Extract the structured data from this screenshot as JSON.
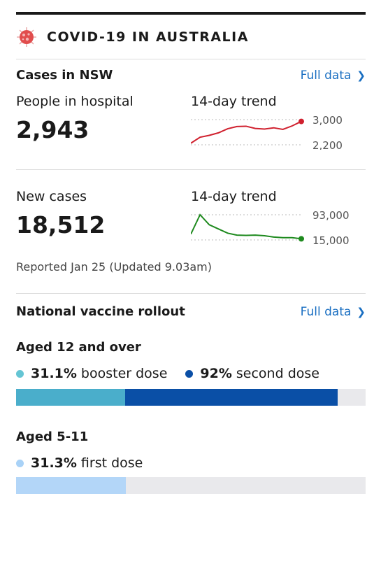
{
  "header": {
    "title": "COVID-19 IN AUSTRALIA",
    "icon": "virus-icon"
  },
  "cases": {
    "title": "Cases in NSW",
    "full_data_label": "Full data",
    "hospital": {
      "label": "People in hospital",
      "value": "2,943",
      "trend_label": "14-day trend",
      "max_label": "3,000",
      "min_label": "2,200",
      "color": "#d0202e"
    },
    "new_cases": {
      "label": "New cases",
      "value": "18,512",
      "trend_label": "14-day trend",
      "max_label": "93,000",
      "min_label": "15,000",
      "color": "#1e8a1e"
    },
    "reported": "Reported Jan 25 (Updated 9.03am)"
  },
  "vaccine": {
    "title": "National vaccine rollout",
    "full_data_label": "Full data",
    "aged12": {
      "title": "Aged 12 and over",
      "booster_pct": "31.1%",
      "booster_label": "booster dose",
      "second_pct": "92%",
      "second_label": "second dose",
      "booster_value": 31.1,
      "second_value": 92,
      "booster_color": "#4aaecb",
      "second_color": "#0a4fa6"
    },
    "aged5": {
      "title": "Aged 5-11",
      "first_pct": "31.3%",
      "first_label": "first dose",
      "first_value": 31.3,
      "first_color": "#b3d6f8"
    }
  },
  "chart_data": [
    {
      "type": "line",
      "ylim": [
        2200,
        3000
      ],
      "series": [
        {
          "values": [
            2250,
            2440,
            2500,
            2580,
            2710,
            2780,
            2790,
            2720,
            2700,
            2740,
            2690,
            2800,
            2943
          ]
        }
      ]
    },
    {
      "type": "line",
      "ylim": [
        15000,
        93000
      ],
      "series": [
        {
          "values": [
            33000,
            93000,
            62000,
            49000,
            36000,
            30000,
            29000,
            30000,
            28000,
            24000,
            22000,
            22000,
            18512
          ]
        }
      ]
    }
  ]
}
